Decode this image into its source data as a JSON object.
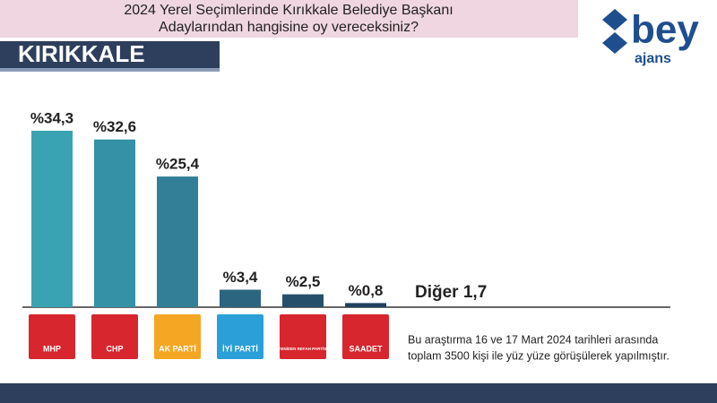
{
  "chart_data": {
    "type": "bar",
    "title": [
      "2024 Yerel Seçimlerinde Kırıkkale Belediye Başkanı",
      "Adaylarından hangisine oy vereceksiniz?"
    ],
    "region": "KIRIKKALE",
    "logo": {
      "main": "bey",
      "sub": "ajans"
    },
    "categories": [
      "MHP",
      "CHP",
      "AK PARTİ",
      "İYİ PARTİ",
      "YENİDEN REFAH PARTİSİ",
      "SAADET"
    ],
    "category_colors": [
      "#d7262e",
      "#d7262e",
      "#f5a623",
      "#2a9fd8",
      "#d7262e",
      "#d7262e"
    ],
    "values": [
      34.3,
      32.6,
      25.4,
      3.4,
      2.5,
      0.8
    ],
    "value_labels": [
      "%34,3",
      "%32,6",
      "%25,4",
      "%3,4",
      "%2,5",
      "%0,8"
    ],
    "colors": [
      "#3aa3b3",
      "#3591a5",
      "#327f97",
      "#2c6580",
      "#264f6c",
      "#213f5e"
    ],
    "other": {
      "name": "Diğer",
      "value": 1.7,
      "value_label": "1,7"
    },
    "note": [
      "Bu araştırma 16 ve 17 Mart 2024 tarihleri arasında",
      "toplam 3500 kişi ile yüz yüze görüşülerek yapılmıştır."
    ]
  }
}
